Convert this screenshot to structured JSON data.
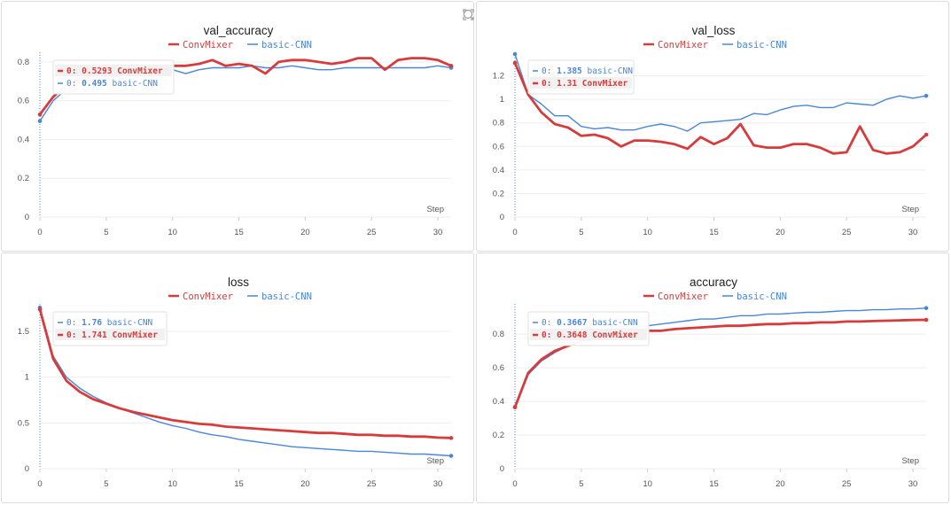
{
  "colors": {
    "ConvMixer": "#d63c3c",
    "basic-CNN": "#4a86d8"
  },
  "icons": [
    "expand-icon",
    "search-icon"
  ],
  "chart_data": [
    {
      "type": "line",
      "title": "val_accuracy",
      "xlabel": "Step",
      "x": [
        0,
        1,
        2,
        3,
        4,
        5,
        6,
        7,
        8,
        9,
        10,
        11,
        12,
        13,
        14,
        15,
        16,
        17,
        18,
        19,
        20,
        21,
        22,
        23,
        24,
        25,
        26,
        27,
        28,
        29,
        30,
        31
      ],
      "xlim": [
        0,
        31
      ],
      "ylim": [
        0,
        0.85
      ],
      "yticks": [
        0,
        0.2,
        0.4,
        0.6,
        0.8
      ],
      "yticklabels": [
        "0",
        "0.2",
        "0.4",
        "0.6",
        "0.8"
      ],
      "xticks": [
        0,
        5,
        10,
        15,
        20,
        25,
        30
      ],
      "legend": [
        "ConvMixer",
        "basic-CNN"
      ],
      "tooltip": [
        {
          "prefix": "0: ",
          "value": "0.5293",
          "name": "ConvMixer"
        },
        {
          "prefix": "0: ",
          "value": "0.495",
          "name": "basic-CNN"
        }
      ],
      "series": [
        {
          "name": "ConvMixer",
          "values": [
            0.529,
            0.62,
            0.68,
            0.71,
            0.73,
            0.75,
            0.76,
            0.77,
            0.77,
            0.78,
            0.78,
            0.78,
            0.79,
            0.81,
            0.78,
            0.79,
            0.78,
            0.74,
            0.8,
            0.81,
            0.81,
            0.8,
            0.79,
            0.8,
            0.82,
            0.82,
            0.76,
            0.81,
            0.82,
            0.82,
            0.81,
            0.78
          ]
        },
        {
          "name": "basic-CNN",
          "values": [
            0.495,
            0.6,
            0.66,
            0.69,
            0.71,
            0.72,
            0.73,
            0.74,
            0.75,
            0.76,
            0.76,
            0.74,
            0.76,
            0.77,
            0.77,
            0.77,
            0.78,
            0.77,
            0.77,
            0.78,
            0.77,
            0.76,
            0.76,
            0.77,
            0.77,
            0.77,
            0.77,
            0.77,
            0.77,
            0.77,
            0.78,
            0.77
          ]
        }
      ]
    },
    {
      "type": "line",
      "title": "val_loss",
      "xlabel": "Step",
      "x": [
        0,
        1,
        2,
        3,
        4,
        5,
        6,
        7,
        8,
        9,
        10,
        11,
        12,
        13,
        14,
        15,
        16,
        17,
        18,
        19,
        20,
        21,
        22,
        23,
        24,
        25,
        26,
        27,
        28,
        29,
        30,
        31
      ],
      "xlim": [
        0,
        31
      ],
      "ylim": [
        0,
        1.4
      ],
      "yticks": [
        0,
        0.2,
        0.4,
        0.6,
        0.8,
        1,
        1.2
      ],
      "yticklabels": [
        "0",
        "0.2",
        "0.4",
        "0.6",
        "0.8",
        "1",
        "1.2"
      ],
      "xticks": [
        0,
        5,
        10,
        15,
        20,
        25,
        30
      ],
      "legend": [
        "ConvMixer",
        "basic-CNN"
      ],
      "tooltip": [
        {
          "prefix": "0: ",
          "value": "1.385",
          "name": "basic-CNN"
        },
        {
          "prefix": "0: ",
          "value": "1.31",
          "name": "ConvMixer"
        }
      ],
      "series": [
        {
          "name": "ConvMixer",
          "values": [
            1.31,
            1.04,
            0.89,
            0.79,
            0.76,
            0.69,
            0.7,
            0.67,
            0.6,
            0.65,
            0.65,
            0.64,
            0.62,
            0.58,
            0.68,
            0.62,
            0.67,
            0.79,
            0.61,
            0.59,
            0.59,
            0.62,
            0.62,
            0.59,
            0.54,
            0.55,
            0.77,
            0.57,
            0.54,
            0.55,
            0.6,
            0.7
          ]
        },
        {
          "name": "basic-CNN",
          "values": [
            1.385,
            1.04,
            0.96,
            0.86,
            0.86,
            0.77,
            0.75,
            0.76,
            0.74,
            0.74,
            0.77,
            0.79,
            0.77,
            0.73,
            0.8,
            0.81,
            0.82,
            0.83,
            0.88,
            0.87,
            0.91,
            0.94,
            0.95,
            0.93,
            0.93,
            0.97,
            0.96,
            0.95,
            1.0,
            1.03,
            1.01,
            1.03
          ]
        }
      ]
    },
    {
      "type": "line",
      "title": "loss",
      "xlabel": "Step",
      "x": [
        0,
        1,
        2,
        3,
        4,
        5,
        6,
        7,
        8,
        9,
        10,
        11,
        12,
        13,
        14,
        15,
        16,
        17,
        18,
        19,
        20,
        21,
        22,
        23,
        24,
        25,
        26,
        27,
        28,
        29,
        30,
        31
      ],
      "xlim": [
        0,
        31
      ],
      "ylim": [
        0,
        1.8
      ],
      "yticks": [
        0,
        0.5,
        1,
        1.5
      ],
      "yticklabels": [
        "0",
        "0.5",
        "1",
        "1.5"
      ],
      "xticks": [
        0,
        5,
        10,
        15,
        20,
        25,
        30
      ],
      "legend": [
        "ConvMixer",
        "basic-CNN"
      ],
      "tooltip": [
        {
          "prefix": "0: ",
          "value": "1.76",
          "name": "basic-CNN"
        },
        {
          "prefix": "0: ",
          "value": "1.741",
          "name": "ConvMixer"
        }
      ],
      "series": [
        {
          "name": "ConvMixer",
          "values": [
            1.741,
            1.2,
            0.96,
            0.84,
            0.76,
            0.71,
            0.66,
            0.62,
            0.59,
            0.56,
            0.53,
            0.51,
            0.49,
            0.48,
            0.46,
            0.45,
            0.44,
            0.43,
            0.42,
            0.41,
            0.4,
            0.39,
            0.39,
            0.38,
            0.37,
            0.37,
            0.36,
            0.36,
            0.35,
            0.35,
            0.34,
            0.335
          ]
        },
        {
          "name": "basic-CNN",
          "values": [
            1.76,
            1.23,
            1.0,
            0.88,
            0.79,
            0.72,
            0.66,
            0.61,
            0.56,
            0.51,
            0.47,
            0.44,
            0.4,
            0.37,
            0.35,
            0.32,
            0.3,
            0.28,
            0.26,
            0.24,
            0.23,
            0.22,
            0.21,
            0.2,
            0.19,
            0.19,
            0.18,
            0.17,
            0.16,
            0.16,
            0.15,
            0.14
          ]
        }
      ]
    },
    {
      "type": "line",
      "title": "accuracy",
      "xlabel": "Step",
      "x": [
        0,
        1,
        2,
        3,
        4,
        5,
        6,
        7,
        8,
        9,
        10,
        11,
        12,
        13,
        14,
        15,
        16,
        17,
        18,
        19,
        20,
        21,
        22,
        23,
        24,
        25,
        26,
        27,
        28,
        29,
        30,
        31
      ],
      "xlim": [
        0,
        31
      ],
      "ylim": [
        0,
        0.98
      ],
      "yticks": [
        0,
        0.2,
        0.4,
        0.6,
        0.8
      ],
      "yticklabels": [
        "0",
        "0.2",
        "0.4",
        "0.6",
        "0.8"
      ],
      "xticks": [
        0,
        5,
        10,
        15,
        20,
        25,
        30
      ],
      "legend": [
        "ConvMixer",
        "basic-CNN"
      ],
      "tooltip": [
        {
          "prefix": "0: ",
          "value": "0.3667",
          "name": "basic-CNN"
        },
        {
          "prefix": "0: ",
          "value": "0.3648",
          "name": "ConvMixer"
        }
      ],
      "series": [
        {
          "name": "ConvMixer",
          "values": [
            0.365,
            0.57,
            0.65,
            0.7,
            0.73,
            0.76,
            0.77,
            0.79,
            0.8,
            0.81,
            0.82,
            0.82,
            0.83,
            0.835,
            0.84,
            0.845,
            0.85,
            0.85,
            0.855,
            0.86,
            0.86,
            0.865,
            0.865,
            0.87,
            0.87,
            0.875,
            0.875,
            0.878,
            0.88,
            0.882,
            0.884,
            0.885
          ]
        },
        {
          "name": "basic-CNN",
          "values": [
            0.367,
            0.56,
            0.64,
            0.69,
            0.73,
            0.76,
            0.79,
            0.81,
            0.83,
            0.84,
            0.85,
            0.86,
            0.87,
            0.88,
            0.89,
            0.89,
            0.9,
            0.91,
            0.91,
            0.92,
            0.92,
            0.925,
            0.93,
            0.93,
            0.935,
            0.94,
            0.94,
            0.945,
            0.945,
            0.95,
            0.95,
            0.955
          ]
        }
      ]
    }
  ]
}
